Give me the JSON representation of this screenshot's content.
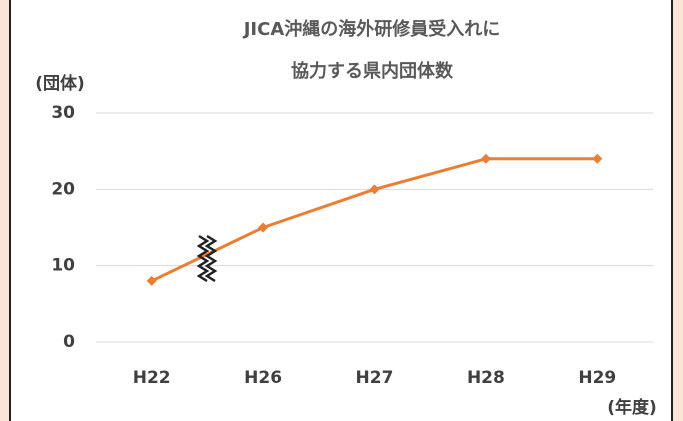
{
  "chart_data": {
    "type": "line",
    "title": [
      "JICA沖縄の海外研修員受入れに",
      "協力する県内団体数"
    ],
    "y_label": "(団体)",
    "x_label": "(年度)",
    "categories": [
      "H22",
      "H26",
      "H27",
      "H28",
      "H29"
    ],
    "values": [
      8,
      15,
      20,
      24,
      24
    ],
    "color": "#ed7d31",
    "ylim": [
      0,
      30
    ],
    "yticks": [
      0,
      10,
      20,
      30
    ],
    "grid": true
  }
}
